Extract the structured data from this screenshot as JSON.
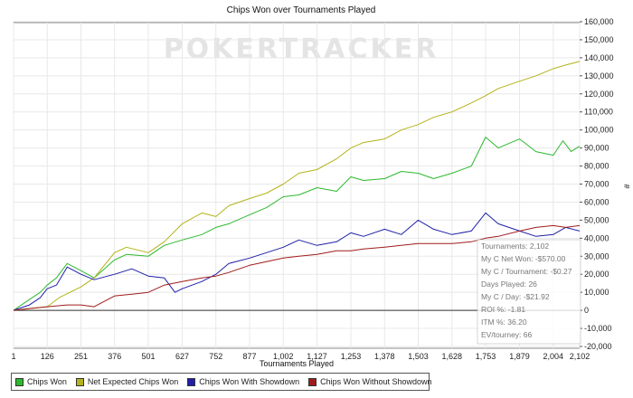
{
  "watermark": "POKERTRACKER",
  "chart_data": {
    "type": "line",
    "title": "Chips Won over Tournaments Played",
    "xlabel": "Tournaments Played",
    "ylabel": "",
    "xlim": [
      1,
      2102
    ],
    "ylim": [
      -20000,
      160000
    ],
    "x_ticks": [
      "1",
      "126",
      "251",
      "376",
      "501",
      "627",
      "752",
      "877",
      "1,002",
      "1,127",
      "1,253",
      "1,378",
      "1,503",
      "1,628",
      "1,753",
      "1,879",
      "2,004",
      "2,102"
    ],
    "x_tick_values": [
      1,
      126,
      251,
      376,
      501,
      627,
      752,
      877,
      1002,
      1127,
      1253,
      1378,
      1503,
      1628,
      1753,
      1879,
      2004,
      2102
    ],
    "y_ticks": [
      "-20,000",
      "-10,000",
      "0",
      "10,000",
      "20,000",
      "30,000",
      "40,000",
      "50,000",
      "60,000",
      "70,000",
      "80,000",
      "90,000",
      "100,000",
      "110,000",
      "120,000",
      "130,000",
      "140,000",
      "150,000",
      "160,000"
    ],
    "y_tick_values": [
      -20000,
      -10000,
      0,
      10000,
      20000,
      30000,
      40000,
      50000,
      60000,
      70000,
      80000,
      90000,
      100000,
      110000,
      120000,
      130000,
      140000,
      150000,
      160000
    ],
    "series": [
      {
        "name": "Chips Won",
        "color": "#2db82d",
        "x": [
          1,
          60,
          100,
          126,
          160,
          200,
          251,
          300,
          376,
          420,
          501,
          560,
          627,
          700,
          752,
          800,
          877,
          940,
          1002,
          1060,
          1127,
          1200,
          1253,
          1300,
          1378,
          1440,
          1503,
          1560,
          1628,
          1700,
          1753,
          1800,
          1879,
          1940,
          2004,
          2040,
          2070,
          2102
        ],
        "y": [
          0,
          6000,
          10000,
          14000,
          18000,
          26000,
          22000,
          18000,
          28000,
          31000,
          30000,
          36000,
          39000,
          42000,
          46000,
          48000,
          53000,
          57000,
          63000,
          64000,
          68000,
          66000,
          74000,
          72000,
          73000,
          77000,
          76000,
          73000,
          76000,
          80000,
          96000,
          90000,
          95000,
          88000,
          86000,
          94000,
          88000,
          91000
        ]
      },
      {
        "name": "Net Expected Chips Won",
        "color": "#b3b31a",
        "x": [
          1,
          60,
          126,
          170,
          251,
          300,
          376,
          420,
          501,
          560,
          627,
          700,
          752,
          800,
          877,
          940,
          1002,
          1060,
          1127,
          1200,
          1253,
          1300,
          1378,
          1440,
          1503,
          1560,
          1628,
          1700,
          1753,
          1800,
          1879,
          1940,
          2004,
          2050,
          2102
        ],
        "y": [
          0,
          1000,
          2000,
          7000,
          13000,
          18000,
          32000,
          35000,
          32000,
          38000,
          48000,
          54000,
          52000,
          58000,
          62000,
          65000,
          70000,
          76000,
          78000,
          84000,
          90000,
          93000,
          95000,
          100000,
          103000,
          107000,
          110000,
          115000,
          119000,
          123000,
          127000,
          130000,
          134000,
          136000,
          138000
        ]
      },
      {
        "name": "Chips Won With Showdown",
        "color": "#1f1fa8",
        "x": [
          1,
          60,
          100,
          126,
          160,
          200,
          251,
          300,
          376,
          440,
          501,
          560,
          600,
          627,
          700,
          752,
          800,
          877,
          940,
          1002,
          1060,
          1127,
          1200,
          1253,
          1300,
          1378,
          1440,
          1503,
          1560,
          1628,
          1700,
          1753,
          1800,
          1879,
          1940,
          2004,
          2050,
          2102
        ],
        "y": [
          0,
          3000,
          7000,
          12000,
          14000,
          24000,
          20000,
          17000,
          20000,
          23000,
          19000,
          18000,
          10000,
          12000,
          16000,
          20000,
          26000,
          29000,
          32000,
          35000,
          39000,
          36000,
          38000,
          43000,
          41000,
          45000,
          42000,
          50000,
          45000,
          42000,
          44000,
          54000,
          48000,
          44000,
          41000,
          42000,
          46000,
          44000
        ]
      },
      {
        "name": "Chips Won Without Showdown",
        "color": "#a01c1c",
        "x": [
          1,
          60,
          126,
          200,
          251,
          300,
          376,
          440,
          501,
          560,
          627,
          700,
          752,
          800,
          877,
          940,
          1002,
          1060,
          1127,
          1200,
          1253,
          1300,
          1378,
          1440,
          1503,
          1560,
          1628,
          1700,
          1753,
          1800,
          1879,
          1940,
          2004,
          2050,
          2102
        ],
        "y": [
          0,
          1000,
          2000,
          3000,
          3000,
          2000,
          8000,
          9000,
          10000,
          14000,
          16000,
          18000,
          19000,
          21000,
          25000,
          27000,
          29000,
          30000,
          31000,
          33000,
          33000,
          34000,
          35000,
          36000,
          37000,
          37000,
          37000,
          38000,
          40000,
          41000,
          44000,
          46000,
          47000,
          46000,
          47000
        ]
      }
    ]
  },
  "stats": [
    "Tournaments: 2,102",
    "My C Net Won: -$570.00",
    "My C / Tournament: -$0.27",
    "Days Played: 26",
    "My C / Day: -$21.92",
    "ROI %: -1.81",
    "ITM %: 36.20",
    "EV/tourney: 66"
  ],
  "y_axis_unit": "#"
}
